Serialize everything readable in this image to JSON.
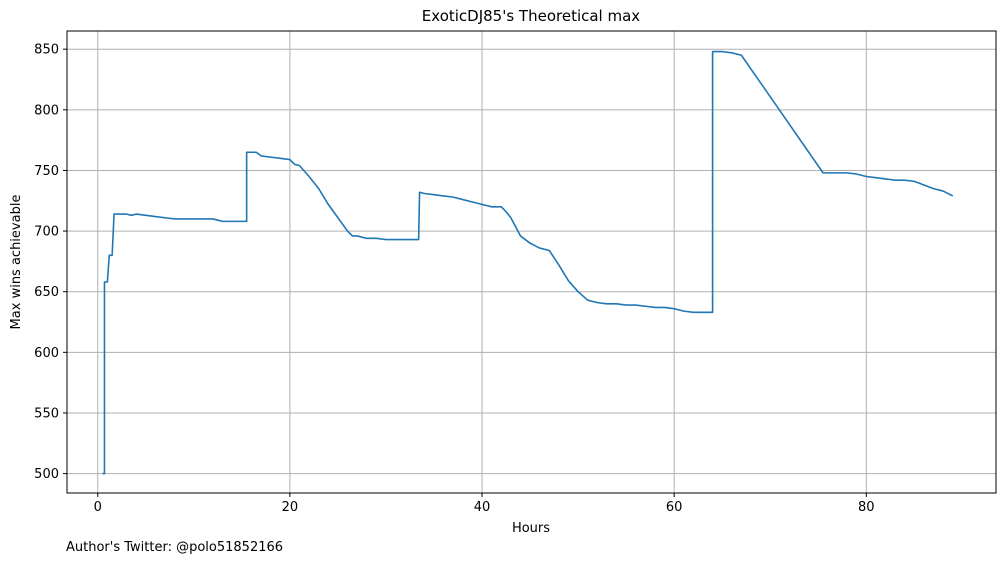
{
  "chart_data": {
    "type": "line",
    "title": "ExoticDJ85's Theoretical max",
    "xlabel": "Hours",
    "ylabel": "Max wins achievable",
    "xlim": [
      -3.2,
      93.5
    ],
    "ylim": [
      484,
      865
    ],
    "xticks": [
      0,
      20,
      40,
      60,
      80
    ],
    "yticks": [
      500,
      550,
      600,
      650,
      700,
      750,
      800,
      850
    ],
    "grid": true,
    "line_color": "#1f77b4",
    "series": [
      {
        "x": [
          0.5,
          0.7,
          0.7,
          1.0,
          1.2,
          1.5,
          1.7,
          2.0,
          3.0,
          3.5,
          4.0,
          5.0,
          6.0,
          7.0,
          8.0,
          9.0,
          10.0,
          11.0,
          12.0,
          12.5,
          13.0,
          14.0,
          15.0,
          15.5,
          15.5,
          16.5,
          17.0,
          18.0,
          19.0,
          20.0,
          20.5,
          21.0,
          22.0,
          23.0,
          24.0,
          25.0,
          26.0,
          26.5,
          27.0,
          28.0,
          29.0,
          30.0,
          31.0,
          32.0,
          33.0,
          33.4,
          33.5,
          34.0,
          35.0,
          36.0,
          37.0,
          38.0,
          39.0,
          40.0,
          41.0,
          42.0,
          42.5,
          43.0,
          44.0,
          45.0,
          46.0,
          47.0,
          48.0,
          49.0,
          50.0,
          51.0,
          52.0,
          53.0,
          54.0,
          55.0,
          56.0,
          57.0,
          58.0,
          59.0,
          60.0,
          61.0,
          62.0,
          63.0,
          63.8,
          64.0,
          64.0,
          65.0,
          66.0,
          67.0,
          75.5,
          76.0,
          77.0,
          78.0,
          79.0,
          80.0,
          81.0,
          82.0,
          83.0,
          84.0,
          85.0,
          86.0,
          87.0,
          88.0,
          89.0
        ],
        "values": [
          500,
          500,
          658,
          658,
          680,
          680,
          714,
          714,
          714,
          713,
          714,
          713,
          712,
          711,
          710,
          710,
          710,
          710,
          710,
          709,
          708,
          708,
          708,
          708,
          765,
          765,
          762,
          761,
          760,
          759,
          755,
          754,
          745,
          735,
          722,
          711,
          700,
          696,
          696,
          694,
          694,
          693,
          693,
          693,
          693,
          693,
          732,
          731,
          730,
          729,
          728,
          726,
          724,
          722,
          720,
          720,
          716,
          711,
          696,
          690,
          686,
          684,
          672,
          659,
          650,
          643,
          641,
          640,
          640,
          639,
          639,
          638,
          637,
          637,
          636,
          634,
          633,
          633,
          633,
          633,
          848,
          848,
          847,
          845,
          748,
          748,
          748,
          748,
          747,
          745,
          744,
          743,
          742,
          742,
          741,
          738,
          735,
          733,
          729
        ]
      }
    ]
  },
  "footer": {
    "text": "Author's Twitter: @polo51852166"
  }
}
